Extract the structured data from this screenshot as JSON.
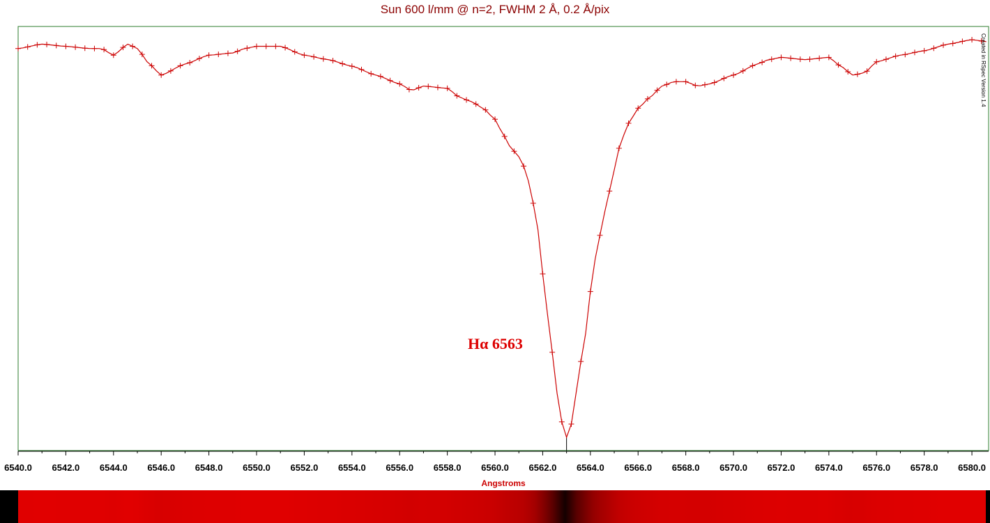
{
  "chart_data": {
    "type": "line",
    "title": "Sun 600 l/mm @ n=2, FWHM 2 Å, 0.2 Å/pix",
    "xlabel": "Angstroms",
    "ylabel": "",
    "xlim": [
      6540.0,
      6580.7
    ],
    "ylim": [
      0.08,
      1.04
    ],
    "x_ticks": [
      "6540.0",
      "6542.0",
      "6544.0",
      "6546.0",
      "6548.0",
      "6550.0",
      "6552.0",
      "6554.0",
      "6556.0",
      "6558.0",
      "6560.0",
      "6562.0",
      "6564.0",
      "6566.0",
      "6568.0",
      "6570.0",
      "6572.0",
      "6574.0",
      "6576.0",
      "6578.0",
      "6580.0"
    ],
    "annotation": {
      "text": "Hα 6563",
      "x": 6563.0
    },
    "marker_line_x": 6563.0,
    "credit": "Created in RSpec Version 1.4",
    "spectrum_strip": true,
    "colors": {
      "line": "#cc0000",
      "frame": "#2e7d2e",
      "strip": "#e00000",
      "title": "#8B0000"
    },
    "series": [
      {
        "points": [
          [
            6540.0,
            0.99
          ],
          [
            6541.0,
            1.0
          ],
          [
            6542.0,
            0.995
          ],
          [
            6543.0,
            0.99
          ],
          [
            6543.5,
            0.99
          ],
          [
            6544.0,
            0.975
          ],
          [
            6544.6,
            1.0
          ],
          [
            6545.0,
            0.99
          ],
          [
            6545.5,
            0.955
          ],
          [
            6546.0,
            0.93
          ],
          [
            6547.0,
            0.955
          ],
          [
            6548.0,
            0.975
          ],
          [
            6549.0,
            0.98
          ],
          [
            6549.5,
            0.99
          ],
          [
            6550.0,
            0.995
          ],
          [
            6551.0,
            0.995
          ],
          [
            6552.0,
            0.975
          ],
          [
            6553.0,
            0.965
          ],
          [
            6554.0,
            0.95
          ],
          [
            6555.0,
            0.93
          ],
          [
            6556.0,
            0.91
          ],
          [
            6556.5,
            0.895
          ],
          [
            6557.0,
            0.905
          ],
          [
            6558.0,
            0.9
          ],
          [
            6558.5,
            0.88
          ],
          [
            6559.0,
            0.87
          ],
          [
            6559.5,
            0.855
          ],
          [
            6560.0,
            0.83
          ],
          [
            6560.3,
            0.8
          ],
          [
            6560.6,
            0.77
          ],
          [
            6561.0,
            0.745
          ],
          [
            6561.3,
            0.715
          ],
          [
            6561.5,
            0.665
          ],
          [
            6561.8,
            0.58
          ],
          [
            6562.0,
            0.48
          ],
          [
            6562.3,
            0.35
          ],
          [
            6562.5,
            0.255
          ],
          [
            6562.7,
            0.165
          ],
          [
            6562.9,
            0.125
          ],
          [
            6563.0,
            0.11
          ],
          [
            6563.1,
            0.115
          ],
          [
            6563.3,
            0.165
          ],
          [
            6563.5,
            0.255
          ],
          [
            6563.8,
            0.345
          ],
          [
            6564.0,
            0.44
          ],
          [
            6564.3,
            0.545
          ],
          [
            6564.6,
            0.62
          ],
          [
            6565.0,
            0.715
          ],
          [
            6565.3,
            0.785
          ],
          [
            6565.7,
            0.83
          ],
          [
            6566.0,
            0.855
          ],
          [
            6566.5,
            0.88
          ],
          [
            6567.0,
            0.905
          ],
          [
            6567.5,
            0.915
          ],
          [
            6568.0,
            0.915
          ],
          [
            6568.5,
            0.905
          ],
          [
            6569.0,
            0.91
          ],
          [
            6570.0,
            0.93
          ],
          [
            6571.0,
            0.955
          ],
          [
            6571.5,
            0.965
          ],
          [
            6572.0,
            0.97
          ],
          [
            6573.0,
            0.965
          ],
          [
            6574.0,
            0.97
          ],
          [
            6574.5,
            0.95
          ],
          [
            6575.0,
            0.93
          ],
          [
            6575.5,
            0.935
          ],
          [
            6576.0,
            0.96
          ],
          [
            6577.0,
            0.975
          ],
          [
            6578.0,
            0.985
          ],
          [
            6579.0,
            1.0
          ],
          [
            6580.0,
            1.01
          ],
          [
            6580.7,
            1.005
          ]
        ]
      }
    ]
  }
}
